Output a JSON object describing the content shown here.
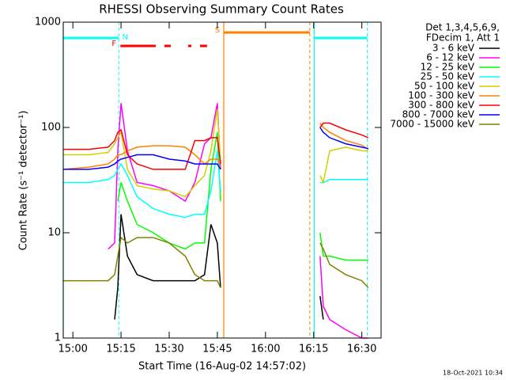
{
  "chart_data": {
    "type": "line",
    "title": "RHESSI Observing Summary Count Rates",
    "x_label": "Start Time (16-Aug-02 14:57:02)",
    "y_label": "Count Rate (s⁻¹ detector⁻¹)",
    "legend_header": [
      "Det 1,3,4,5,6,9,",
      "FDecim 1, Att 1"
    ],
    "footer": "18-Oct-2021 10:34",
    "log_y": true,
    "xlim": [
      897,
      996
    ],
    "ylim": [
      1,
      1000
    ],
    "xticks": [
      {
        "value": 900,
        "label": "15:00"
      },
      {
        "value": 915,
        "label": "15:15"
      },
      {
        "value": 930,
        "label": "15:30"
      },
      {
        "value": 945,
        "label": "15:45"
      },
      {
        "value": 960,
        "label": "16:00"
      },
      {
        "value": 975,
        "label": "16:15"
      },
      {
        "value": 990,
        "label": "16:30"
      }
    ],
    "yticks": [
      1,
      10,
      100,
      1000
    ],
    "x": [
      897,
      905,
      911,
      913,
      914,
      915,
      917,
      920,
      925,
      930,
      935,
      938,
      941,
      943,
      945,
      946,
      960,
      977,
      978,
      980,
      985,
      990,
      992
    ],
    "series": [
      {
        "name": "3 - 6 keV",
        "color": "#000000",
        "values": [
          null,
          null,
          null,
          1.5,
          3,
          15,
          6,
          4,
          3.5,
          3.5,
          3.5,
          3.5,
          4,
          12,
          8,
          3,
          null,
          2.5,
          1.5,
          null,
          null,
          null,
          null
        ]
      },
      {
        "name": "6 - 12 keV",
        "color": "#ff00ff",
        "values": [
          null,
          null,
          7,
          8,
          60,
          170,
          60,
          30,
          28,
          25,
          20,
          30,
          70,
          80,
          170,
          40,
          null,
          6,
          2,
          1.5,
          1.2,
          1,
          1
        ]
      },
      {
        "name": "12 - 25 keV",
        "color": "#00ff00",
        "values": [
          null,
          null,
          null,
          null,
          20,
          30,
          20,
          12,
          10,
          8,
          7,
          8,
          8,
          40,
          90,
          20,
          null,
          10,
          6,
          6,
          5.5,
          5.5,
          5.5
        ]
      },
      {
        "name": "25 - 50 keV",
        "color": "#00ffff",
        "values": [
          30,
          30,
          32,
          35,
          40,
          45,
          35,
          22,
          17,
          15,
          14,
          15,
          15,
          25,
          60,
          25,
          null,
          30,
          30,
          32,
          32,
          32,
          32
        ]
      },
      {
        "name": "50 - 100 keV",
        "color": "#d0d000",
        "values": [
          55,
          55,
          58,
          70,
          80,
          90,
          40,
          28,
          26,
          25,
          22,
          28,
          35,
          60,
          150,
          45,
          null,
          35,
          30,
          60,
          65,
          60,
          60
        ]
      },
      {
        "name": "100 - 300 keV",
        "color": "#ff8000",
        "values": [
          40,
          42,
          45,
          50,
          55,
          55,
          60,
          65,
          67,
          67,
          65,
          55,
          45,
          50,
          50,
          42,
          null,
          110,
          100,
          90,
          75,
          68,
          62
        ]
      },
      {
        "name": "300 - 800 keV",
        "color": "#ff0000",
        "values": [
          62,
          62,
          65,
          75,
          90,
          95,
          55,
          45,
          40,
          40,
          40,
          75,
          75,
          80,
          80,
          45,
          null,
          100,
          110,
          110,
          95,
          85,
          80
        ]
      },
      {
        "name": "800 - 7000 keV",
        "color": "#0000ff",
        "values": [
          40,
          40,
          42,
          45,
          48,
          50,
          52,
          55,
          55,
          50,
          48,
          45,
          45,
          45,
          45,
          40,
          null,
          100,
          90,
          80,
          70,
          65,
          63
        ]
      },
      {
        "name": "7000 - 15000 keV",
        "color": "#808000",
        "values": [
          3.5,
          3.5,
          3.5,
          4,
          6,
          9,
          8,
          9,
          9,
          8,
          6,
          4,
          3.5,
          3.5,
          3.5,
          3,
          null,
          8,
          7,
          5,
          4,
          3.5,
          3
        ]
      }
    ],
    "intervals": [
      {
        "label": "N",
        "color": "#00ffff",
        "spans": [
          [
            897,
            914.3
          ],
          [
            975.2,
            991.7
          ]
        ]
      },
      {
        "label": "S",
        "color": "#ff8000",
        "spans": [
          [
            947,
            973.8
          ]
        ]
      },
      {
        "label": "F",
        "color": "#ff0000",
        "spans": [
          [
            914.8,
            925.8
          ],
          [
            928.5,
            930.5
          ],
          [
            935.9,
            936.9
          ],
          [
            939.6,
            941.8
          ]
        ]
      }
    ]
  }
}
